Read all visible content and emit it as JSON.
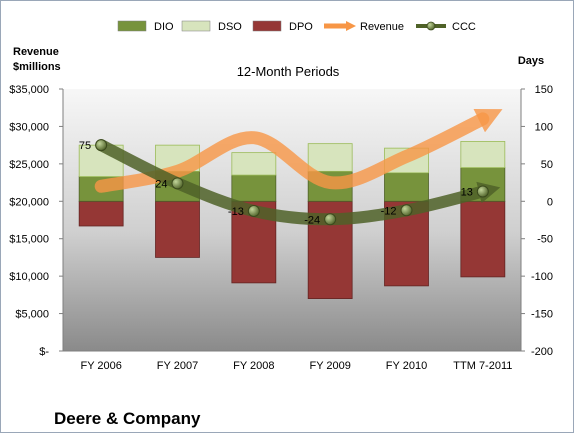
{
  "chart_data": {
    "type": "bar",
    "title": "12-Month Periods",
    "company": "Deere & Company",
    "left_axis_label": [
      "Revenue",
      "$millions"
    ],
    "right_axis_label": "Days",
    "categories": [
      "FY 2006",
      "FY 2007",
      "FY 2008",
      "FY 2009",
      "FY 2010",
      "TTM 7-2011"
    ],
    "ylim_left": [
      0,
      35000
    ],
    "ylim_right": [
      -200,
      150
    ],
    "yticks_left": [
      "$35,000",
      "$30,000",
      "$25,000",
      "$20,000",
      "$15,000",
      "$10,000",
      "$5,000",
      "$-"
    ],
    "yticks_right": [
      "150",
      "100",
      "50",
      "0",
      "-50",
      "-100",
      "-150",
      "-200"
    ],
    "legend": [
      {
        "name": "DIO",
        "color": "#77933c"
      },
      {
        "name": "DSO",
        "color": "#d7e4bd"
      },
      {
        "name": "DPO",
        "color": "#953735"
      },
      {
        "name": "Revenue",
        "color": "#f79646"
      },
      {
        "name": "CCC",
        "color": "#4f6228"
      }
    ],
    "series": [
      {
        "name": "DIO",
        "axis": "right",
        "values": [
          33,
          40,
          35,
          40,
          38,
          45
        ]
      },
      {
        "name": "DSO",
        "axis": "right",
        "values": [
          42,
          35,
          30,
          37,
          33,
          35
        ]
      },
      {
        "name": "DPO",
        "axis": "right",
        "values": [
          -33,
          -75,
          -109,
          -130,
          -113,
          -101
        ]
      },
      {
        "name": "Revenue",
        "axis": "left",
        "values": [
          22000,
          24000,
          28500,
          22500,
          26000,
          31000
        ]
      },
      {
        "name": "CCC",
        "axis": "right",
        "values": [
          75,
          24,
          -13,
          -24,
          -12,
          13
        ]
      }
    ],
    "ccc_labels": [
      "75",
      "24",
      "-13",
      "-24",
      "-12",
      "13"
    ],
    "grid": false,
    "legend_position": "top"
  }
}
